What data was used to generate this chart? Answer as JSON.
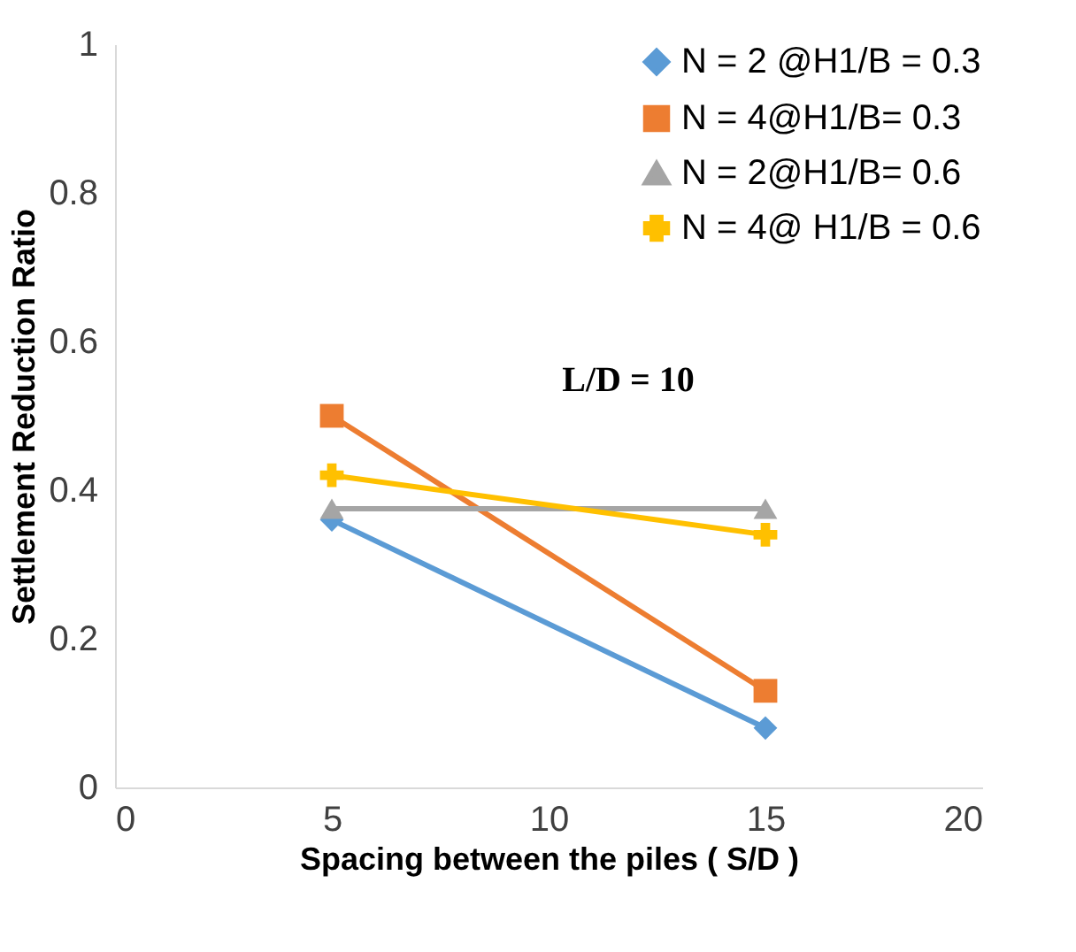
{
  "chart_data": {
    "type": "line",
    "xlabel": "Spacing between the piles ( S/D )",
    "ylabel": "Settlement Reduction Ratio",
    "x": [
      5,
      15
    ],
    "series": [
      {
        "name": "N = 2 @H1/B = 0.3",
        "color": "#5b9bd5",
        "marker": "diamond",
        "values": [
          0.36,
          0.08
        ]
      },
      {
        "name": "N = 4@H1/B= 0.3",
        "color": "#ed7d31",
        "marker": "square",
        "values": [
          0.5,
          0.13
        ]
      },
      {
        "name": "N = 2@H1/B= 0.6",
        "color": "#a5a5a5",
        "marker": "triangle",
        "values": [
          0.375,
          0.375
        ]
      },
      {
        "name": "N = 4@ H1/B = 0.6",
        "color": "#ffc000",
        "marker": "cross",
        "values": [
          0.42,
          0.34
        ]
      }
    ],
    "xlim": [
      0,
      20
    ],
    "xticks": [
      0,
      5,
      10,
      15,
      20
    ],
    "ylim": [
      0,
      1
    ],
    "yticks": [
      0,
      0.2,
      0.4,
      0.6,
      0.8,
      1
    ],
    "annotations": [
      "L/D = 10"
    ],
    "grid": false,
    "legend": "top right",
    "line_style": "solid"
  }
}
